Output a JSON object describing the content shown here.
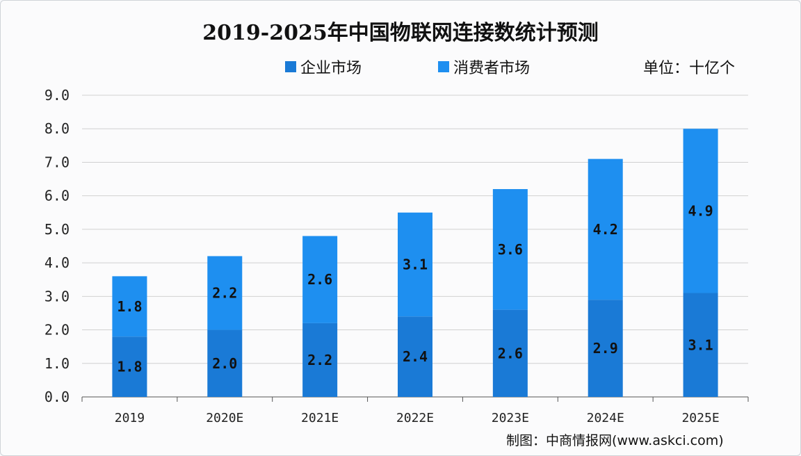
{
  "chart_data": {
    "type": "bar",
    "stacked": true,
    "title": "2019-2025年中国物联网连接数统计预测",
    "unit_label": "单位：十亿个",
    "categories": [
      "2019",
      "2020E",
      "2021E",
      "2022E",
      "2023E",
      "2024E",
      "2025E"
    ],
    "series": [
      {
        "name": "企业市场",
        "color": "#1a7ad6",
        "values": [
          1.8,
          2.0,
          2.2,
          2.4,
          2.6,
          2.9,
          3.1
        ]
      },
      {
        "name": "消费者市场",
        "color": "#1e8ff0",
        "values": [
          1.8,
          2.2,
          2.6,
          3.1,
          3.6,
          4.2,
          4.9
        ]
      }
    ],
    "ylim": [
      0,
      9
    ],
    "yticks": [
      "0.0",
      "1.0",
      "2.0",
      "3.0",
      "4.0",
      "5.0",
      "6.0",
      "7.0",
      "8.0",
      "9.0"
    ],
    "grid": true,
    "legend_placement": "top",
    "xlabel": "",
    "ylabel": ""
  },
  "source": "制图：中商情报网(www.askci.com)"
}
